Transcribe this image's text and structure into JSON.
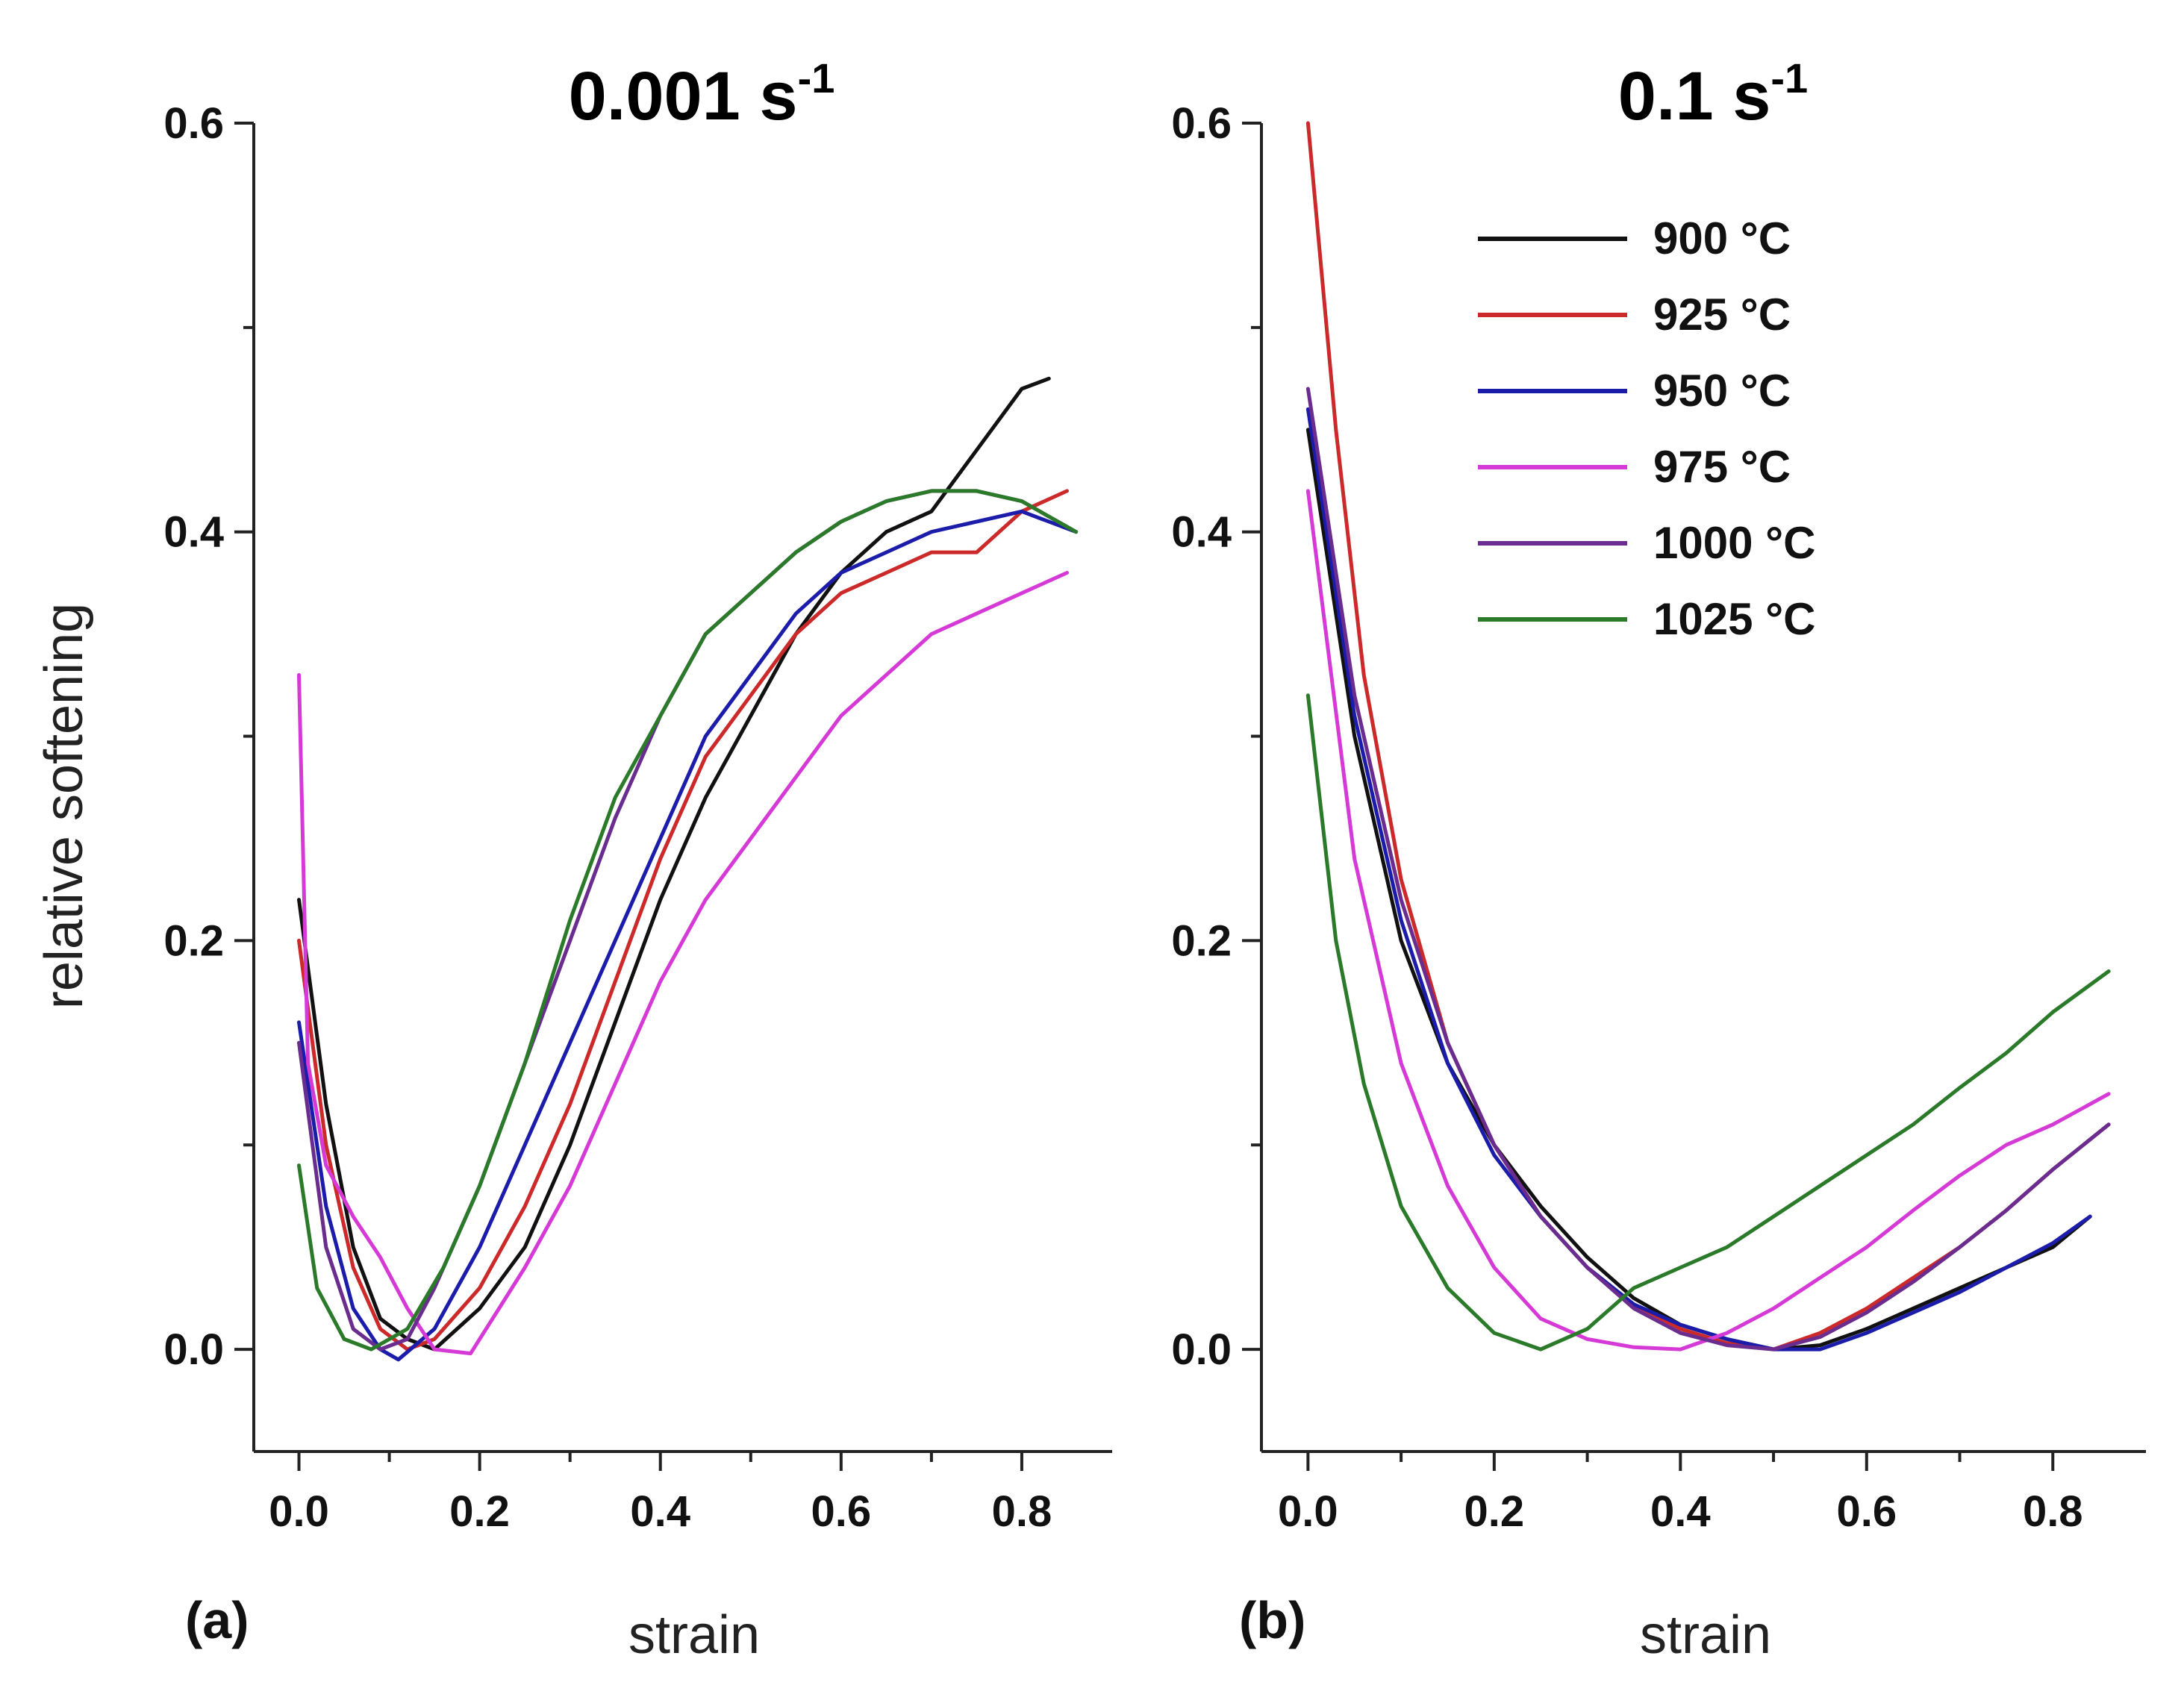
{
  "figure": {
    "ylabel_shared": "relative softening"
  },
  "chart_data": [
    {
      "type": "line",
      "panel_letter": "(a)",
      "title": "0.001 s",
      "title_sup": "-1",
      "xlabel": "strain",
      "ylabel": "relative softening",
      "xlim": [
        -0.05,
        0.9
      ],
      "ylim": [
        -0.05,
        0.6
      ],
      "xticks": [
        0.0,
        0.2,
        0.4,
        0.6,
        0.8
      ],
      "yticks": [
        0.0,
        0.2,
        0.4,
        0.6
      ],
      "xtick_labels": [
        "0.0",
        "0.2",
        "0.4",
        "0.6",
        "0.8"
      ],
      "ytick_labels": [
        "0.0",
        "0.2",
        "0.4",
        "0.6"
      ],
      "show_legend": false,
      "series": [
        {
          "name": "900 °C",
          "color": "#111111",
          "x": [
            0.0,
            0.03,
            0.06,
            0.09,
            0.12,
            0.15,
            0.2,
            0.25,
            0.3,
            0.35,
            0.4,
            0.45,
            0.5,
            0.55,
            0.6,
            0.65,
            0.7,
            0.75,
            0.8,
            0.83
          ],
          "y": [
            0.22,
            0.12,
            0.05,
            0.015,
            0.005,
            0.0,
            0.02,
            0.05,
            0.1,
            0.16,
            0.22,
            0.27,
            0.31,
            0.35,
            0.38,
            0.4,
            0.41,
            0.44,
            0.47,
            0.475
          ]
        },
        {
          "name": "925 °C",
          "color": "#cc2a2a",
          "x": [
            0.0,
            0.03,
            0.06,
            0.09,
            0.12,
            0.15,
            0.2,
            0.25,
            0.3,
            0.35,
            0.4,
            0.45,
            0.5,
            0.55,
            0.6,
            0.65,
            0.7,
            0.75,
            0.8,
            0.85
          ],
          "y": [
            0.2,
            0.1,
            0.04,
            0.01,
            0.0,
            0.005,
            0.03,
            0.07,
            0.12,
            0.18,
            0.24,
            0.29,
            0.32,
            0.35,
            0.37,
            0.38,
            0.39,
            0.39,
            0.41,
            0.42
          ]
        },
        {
          "name": "950 °C",
          "color": "#1c1caa",
          "x": [
            0.0,
            0.03,
            0.06,
            0.09,
            0.11,
            0.15,
            0.2,
            0.25,
            0.3,
            0.35,
            0.4,
            0.45,
            0.5,
            0.55,
            0.6,
            0.65,
            0.7,
            0.75,
            0.8,
            0.86
          ],
          "y": [
            0.16,
            0.07,
            0.02,
            0.0,
            -0.005,
            0.01,
            0.05,
            0.1,
            0.15,
            0.2,
            0.25,
            0.3,
            0.33,
            0.36,
            0.38,
            0.39,
            0.4,
            0.405,
            0.41,
            0.4
          ]
        },
        {
          "name": "975 °C",
          "color": "#d63ad6",
          "x": [
            0.0,
            0.01,
            0.03,
            0.06,
            0.09,
            0.12,
            0.15,
            0.19,
            0.25,
            0.3,
            0.35,
            0.4,
            0.45,
            0.5,
            0.55,
            0.6,
            0.65,
            0.7,
            0.75,
            0.8,
            0.85
          ],
          "y": [
            0.33,
            0.14,
            0.09,
            0.065,
            0.045,
            0.02,
            0.0,
            -0.002,
            0.04,
            0.08,
            0.13,
            0.18,
            0.22,
            0.25,
            0.28,
            0.31,
            0.33,
            0.35,
            0.36,
            0.37,
            0.38
          ]
        },
        {
          "name": "1000 °C",
          "color": "#6a2c8e",
          "x": [
            0.0,
            0.03,
            0.06,
            0.09,
            0.12,
            0.15,
            0.2,
            0.25,
            0.3,
            0.35,
            0.4,
            0.45,
            0.5,
            0.55,
            0.6,
            0.65,
            0.7,
            0.75,
            0.8,
            0.86
          ],
          "y": [
            0.15,
            0.05,
            0.01,
            0.0,
            0.005,
            0.03,
            0.08,
            0.14,
            0.2,
            0.26,
            0.31,
            0.35,
            0.37,
            0.39,
            0.405,
            0.415,
            0.42,
            0.42,
            0.415,
            0.4
          ]
        },
        {
          "name": "1025 °C",
          "color": "#2a7a2a",
          "x": [
            0.0,
            0.02,
            0.05,
            0.08,
            0.12,
            0.16,
            0.2,
            0.25,
            0.3,
            0.35,
            0.4,
            0.45,
            0.5,
            0.55,
            0.6,
            0.65,
            0.7,
            0.75,
            0.8,
            0.86
          ],
          "y": [
            0.09,
            0.03,
            0.005,
            0.0,
            0.01,
            0.04,
            0.08,
            0.14,
            0.21,
            0.27,
            0.31,
            0.35,
            0.37,
            0.39,
            0.405,
            0.415,
            0.42,
            0.42,
            0.415,
            0.4
          ]
        }
      ]
    },
    {
      "type": "line",
      "panel_letter": "(b)",
      "title": "0.1 s",
      "title_sup": "-1",
      "xlabel": "strain",
      "ylabel": "",
      "xlim": [
        -0.05,
        0.9
      ],
      "ylim": [
        -0.05,
        0.6
      ],
      "xticks": [
        0.0,
        0.2,
        0.4,
        0.6,
        0.8
      ],
      "yticks": [
        0.0,
        0.2,
        0.4,
        0.6
      ],
      "xtick_labels": [
        "0.0",
        "0.2",
        "0.4",
        "0.6",
        "0.8"
      ],
      "ytick_labels": [
        "0.0",
        "0.2",
        "0.4",
        "0.6"
      ],
      "show_legend": true,
      "legend_position": "top-right",
      "series": [
        {
          "name": "900 °C",
          "color": "#111111",
          "x": [
            0.0,
            0.05,
            0.1,
            0.15,
            0.2,
            0.25,
            0.3,
            0.35,
            0.4,
            0.45,
            0.5,
            0.55,
            0.6,
            0.65,
            0.7,
            0.75,
            0.8,
            0.84
          ],
          "y": [
            0.45,
            0.3,
            0.2,
            0.14,
            0.1,
            0.07,
            0.045,
            0.025,
            0.012,
            0.005,
            0.0,
            0.002,
            0.01,
            0.02,
            0.03,
            0.04,
            0.05,
            0.065
          ]
        },
        {
          "name": "925 °C",
          "color": "#cc2a2a",
          "x": [
            0.0,
            0.03,
            0.06,
            0.1,
            0.15,
            0.2,
            0.25,
            0.3,
            0.35,
            0.4,
            0.45,
            0.5,
            0.55,
            0.6,
            0.65,
            0.7,
            0.75,
            0.8,
            0.86
          ],
          "y": [
            0.6,
            0.45,
            0.33,
            0.23,
            0.15,
            0.1,
            0.065,
            0.04,
            0.022,
            0.01,
            0.003,
            0.0,
            0.008,
            0.02,
            0.035,
            0.05,
            0.068,
            0.088,
            0.11
          ]
        },
        {
          "name": "950 °C",
          "color": "#1c1caa",
          "x": [
            0.0,
            0.05,
            0.1,
            0.15,
            0.2,
            0.25,
            0.3,
            0.35,
            0.4,
            0.45,
            0.5,
            0.55,
            0.6,
            0.65,
            0.7,
            0.75,
            0.8,
            0.84
          ],
          "y": [
            0.46,
            0.31,
            0.21,
            0.14,
            0.095,
            0.065,
            0.04,
            0.022,
            0.012,
            0.005,
            0.0,
            0.0,
            0.008,
            0.018,
            0.028,
            0.04,
            0.052,
            0.065
          ]
        },
        {
          "name": "975 °C",
          "color": "#d63ad6",
          "x": [
            0.0,
            0.05,
            0.1,
            0.15,
            0.2,
            0.25,
            0.3,
            0.35,
            0.4,
            0.45,
            0.5,
            0.55,
            0.6,
            0.65,
            0.7,
            0.75,
            0.8,
            0.86
          ],
          "y": [
            0.42,
            0.24,
            0.14,
            0.08,
            0.04,
            0.015,
            0.005,
            0.001,
            0.0,
            0.008,
            0.02,
            0.035,
            0.05,
            0.068,
            0.085,
            0.1,
            0.11,
            0.125
          ]
        },
        {
          "name": "1000 °C",
          "color": "#6a2c8e",
          "x": [
            0.0,
            0.05,
            0.1,
            0.15,
            0.2,
            0.25,
            0.3,
            0.35,
            0.4,
            0.45,
            0.5,
            0.55,
            0.6,
            0.65,
            0.7,
            0.75,
            0.8,
            0.86
          ],
          "y": [
            0.47,
            0.32,
            0.22,
            0.15,
            0.1,
            0.065,
            0.04,
            0.02,
            0.008,
            0.002,
            0.0,
            0.006,
            0.018,
            0.033,
            0.05,
            0.068,
            0.088,
            0.11
          ]
        },
        {
          "name": "1025 °C",
          "color": "#2a7a2a",
          "x": [
            0.0,
            0.03,
            0.06,
            0.1,
            0.15,
            0.2,
            0.25,
            0.3,
            0.35,
            0.4,
            0.45,
            0.5,
            0.55,
            0.6,
            0.65,
            0.7,
            0.75,
            0.8,
            0.86
          ],
          "y": [
            0.32,
            0.2,
            0.13,
            0.07,
            0.03,
            0.008,
            0.0,
            0.01,
            0.03,
            0.04,
            0.05,
            0.065,
            0.08,
            0.095,
            0.11,
            0.128,
            0.145,
            0.165,
            0.185
          ]
        }
      ]
    }
  ]
}
